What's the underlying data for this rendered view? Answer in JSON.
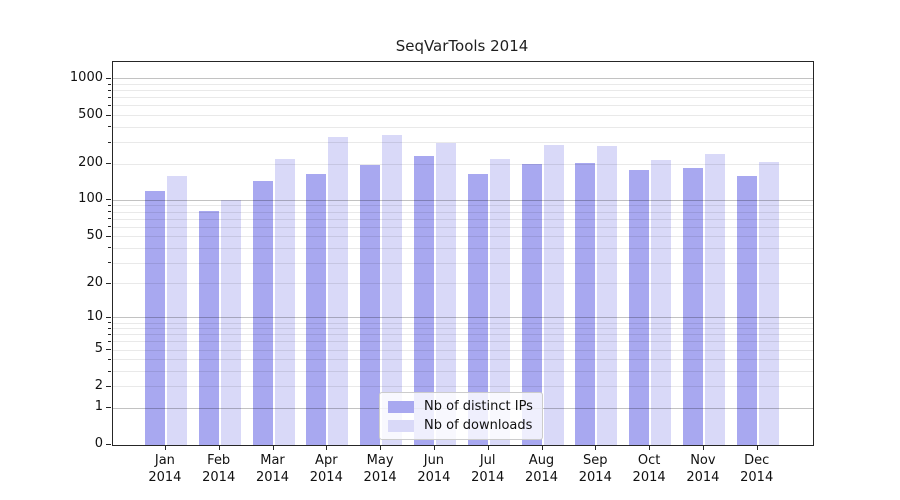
{
  "figure": {
    "title": "SeqVarTools 2014"
  },
  "chart_data": {
    "type": "bar",
    "title": "SeqVarTools 2014",
    "xlabel": "",
    "ylabel": "",
    "categories": [
      "Jan",
      "Feb",
      "Mar",
      "Apr",
      "May",
      "Jun",
      "Jul",
      "Aug",
      "Sep",
      "Oct",
      "Nov",
      "Dec"
    ],
    "year": "2014",
    "series": [
      {
        "name": "Nb of distinct IPs",
        "color": "#a8a8f0",
        "values": [
          120,
          82,
          145,
          165,
          195,
          235,
          165,
          200,
          205,
          180,
          185,
          160
        ]
      },
      {
        "name": "Nb of downloads",
        "color": "#d9d9f8",
        "values": [
          160,
          100,
          220,
          335,
          345,
          300,
          220,
          285,
          280,
          215,
          240,
          208
        ]
      }
    ],
    "yticks": [
      0,
      1,
      2,
      5,
      10,
      20,
      50,
      100,
      200,
      500,
      1000
    ],
    "ytick_labels": [
      "0",
      "1",
      "2",
      "5",
      "10",
      "20",
      "50",
      "100",
      "200",
      "500",
      "1000"
    ],
    "yscale": "log10(1+y)",
    "ylim": [
      0,
      1380
    ],
    "grid": true,
    "legend_position": "lower-center-inside"
  }
}
